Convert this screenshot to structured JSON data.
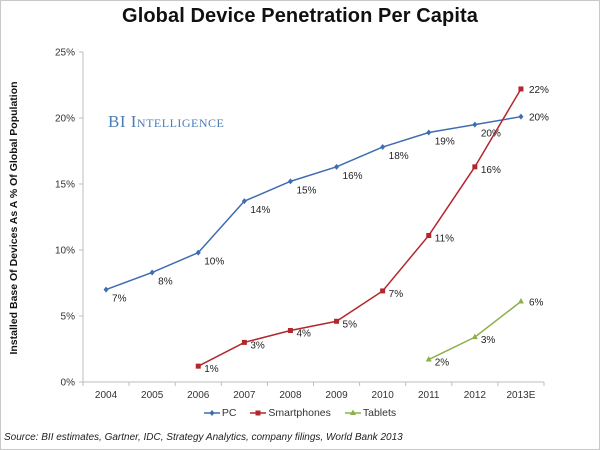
{
  "chart_data": {
    "type": "line",
    "title": "Global Device Penetration Per Capita",
    "xlabel": "",
    "ylabel": "Installed Base Of Devices As A % Of Global Population",
    "ylim": [
      0,
      25
    ],
    "yticks": [
      0,
      5,
      10,
      15,
      20,
      25
    ],
    "ytick_labels": [
      "0%",
      "5%",
      "10%",
      "15%",
      "20%",
      "25%"
    ],
    "categories": [
      "2004",
      "2005",
      "2006",
      "2007",
      "2008",
      "2009",
      "2010",
      "2011",
      "2012",
      "2013E"
    ],
    "grid": false,
    "legend_position": "bottom-center",
    "series": [
      {
        "name": "PC",
        "color": "#3e6db0",
        "marker": "diamond",
        "values": [
          7.0,
          8.3,
          9.8,
          13.7,
          15.2,
          16.3,
          17.8,
          18.9,
          19.5,
          20.1
        ],
        "labels": [
          "7%",
          "8%",
          "10%",
          "14%",
          "15%",
          "16%",
          "18%",
          "19%",
          "20%",
          "20%"
        ]
      },
      {
        "name": "Smartphones",
        "color": "#b2272d",
        "marker": "square",
        "values": [
          null,
          null,
          1.2,
          3.0,
          3.9,
          4.6,
          6.9,
          11.1,
          16.3,
          22.2
        ],
        "labels": [
          null,
          null,
          "1%",
          "3%",
          "4%",
          "5%",
          "7%",
          "11%",
          "16%",
          "22%"
        ]
      },
      {
        "name": "Tablets",
        "color": "#8db04a",
        "marker": "triangle",
        "values": [
          null,
          null,
          null,
          null,
          null,
          null,
          null,
          1.7,
          3.4,
          6.1
        ],
        "labels": [
          null,
          null,
          null,
          null,
          null,
          null,
          null,
          "2%",
          "3%",
          "6%"
        ]
      }
    ]
  },
  "watermark": "BI Intelligence",
  "source": "Source: BII estimates, Gartner, IDC, Strategy Analytics, company filings, World Bank 2013"
}
